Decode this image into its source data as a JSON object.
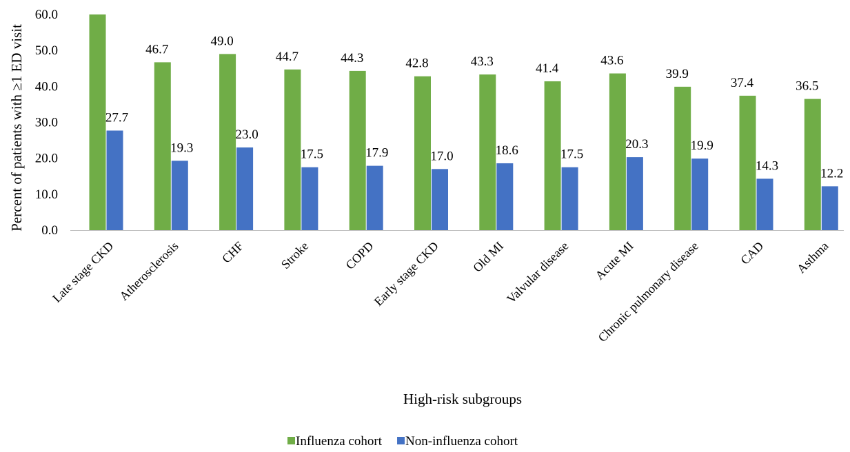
{
  "chart_data": {
    "type": "bar",
    "xlabel": "High-risk subgroups",
    "ylabel": "Percent of patients with ≥1 ED visit",
    "ylim": [
      0,
      60
    ],
    "ytick_labels": [
      "0.0",
      "10.0",
      "20.0",
      "30.0",
      "40.0",
      "50.0",
      "60.0"
    ],
    "grid": false,
    "legend_position": "bottom-center",
    "categories": [
      "Late stage CKD",
      "Atherosclerosis",
      "CHF",
      "Stroke",
      "COPD",
      "Early stage CKD",
      "Old MI",
      "Valvular disease",
      "Acute MI",
      "Chronic pulmonary disease",
      "CAD",
      "Asthma"
    ],
    "series": [
      {
        "name": "Influenza cohort",
        "color": "#70ad47",
        "values": [
          60.0,
          46.7,
          49.0,
          44.7,
          44.3,
          42.8,
          43.3,
          41.4,
          43.6,
          39.9,
          37.4,
          36.5
        ],
        "data_labels": [
          "",
          "46.7",
          "49.0",
          "44.7",
          "44.3",
          "42.8",
          "43.3",
          "41.4",
          "43.6",
          "39.9",
          "37.4",
          "36.5"
        ]
      },
      {
        "name": "Non-influenza cohort",
        "color": "#4472c4",
        "values": [
          27.7,
          19.3,
          23.0,
          17.5,
          17.9,
          17.0,
          18.6,
          17.5,
          20.3,
          19.9,
          14.3,
          12.2
        ],
        "data_labels": [
          "27.7",
          "19.3",
          "23.0",
          "17.5",
          "17.9",
          "17.0",
          "18.6",
          "17.5",
          "20.3",
          "19.9",
          "14.3",
          "12.2"
        ]
      }
    ]
  }
}
